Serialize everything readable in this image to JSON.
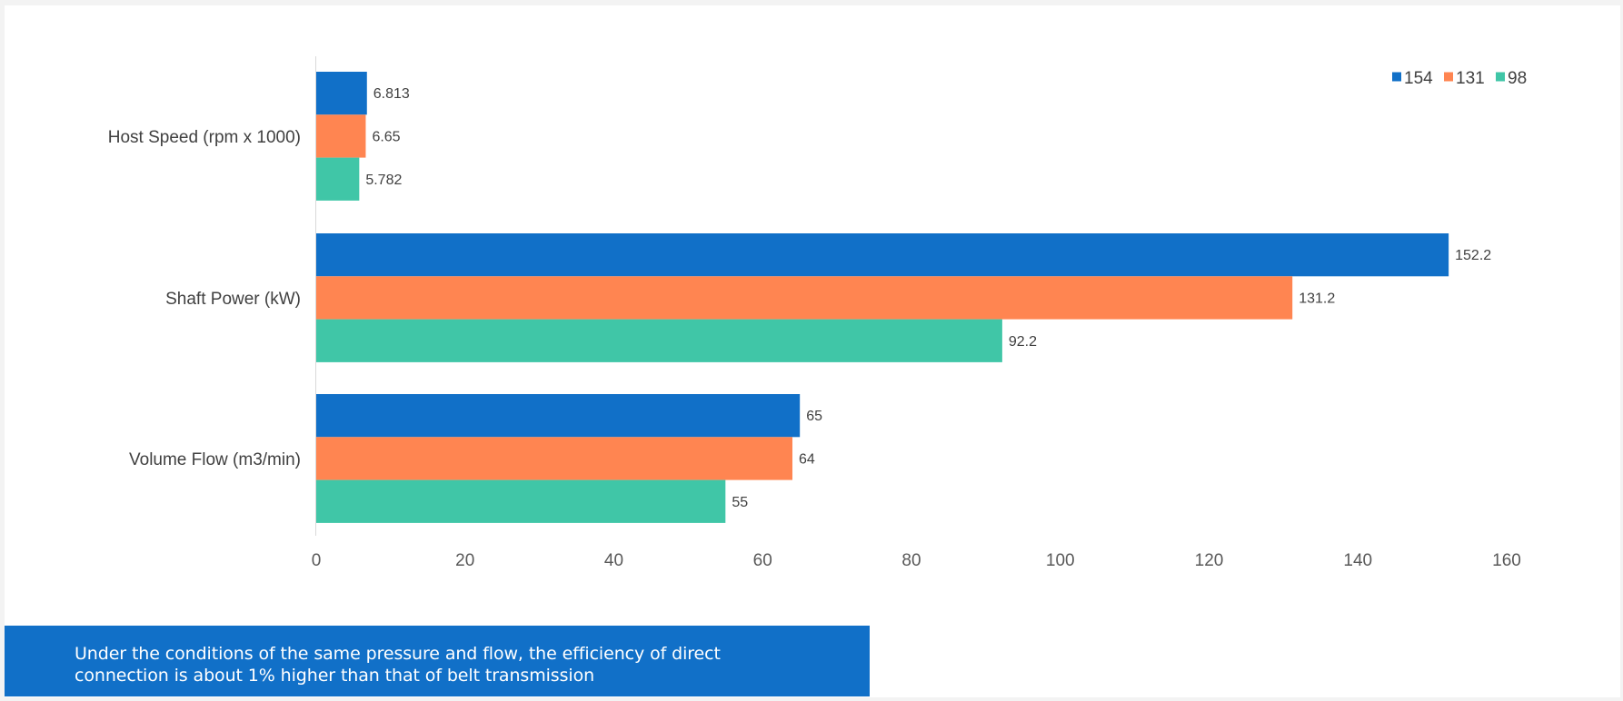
{
  "chart_data": {
    "type": "bar",
    "orientation": "horizontal",
    "title": "",
    "xlabel": "",
    "ylabel": "",
    "categories": [
      "Host Speed (rpm x 1000)",
      "Shaft Power (kW)",
      "Volume Flow (m3/min)"
    ],
    "series": [
      {
        "name": "154",
        "color": "#1170c8",
        "values": [
          6.813,
          152.2,
          65
        ]
      },
      {
        "name": "131",
        "color": "#ff8551",
        "values": [
          6.65,
          131.2,
          64
        ]
      },
      {
        "name": "98",
        "color": "#40c6a7",
        "values": [
          5.782,
          92.2,
          55
        ]
      }
    ],
    "value_labels": [
      [
        "6.813",
        "152.2",
        "65"
      ],
      [
        "6.65",
        "131.2",
        "64"
      ],
      [
        "5.782",
        "92.2",
        "55"
      ]
    ],
    "xlim": [
      0,
      160
    ],
    "xticks": [
      "0",
      "20",
      "40",
      "60",
      "80",
      "100",
      "120",
      "140",
      "160"
    ],
    "grid": false,
    "legend": "top-right"
  },
  "caption": {
    "line1": "Under the conditions of the same pressure and flow, the efficiency of direct",
    "line2": "connection is about 1% higher than that of belt transmission"
  }
}
